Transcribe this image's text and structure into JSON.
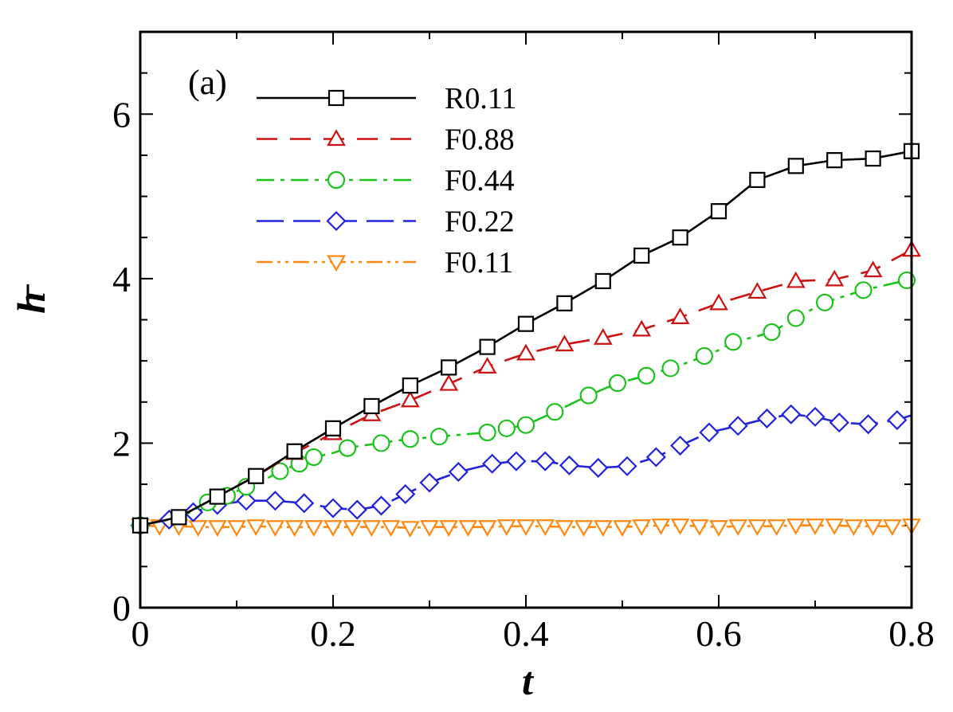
{
  "chart_data": {
    "type": "line",
    "panel_label": "(a)",
    "xlabel": "t",
    "ylabel": "h",
    "ylabel_overbar": true,
    "xlim": [
      0,
      0.8
    ],
    "ylim": [
      0,
      7
    ],
    "xticks": [
      0,
      0.2,
      0.4,
      0.6,
      0.8
    ],
    "xtick_labels": [
      "0",
      "0.2",
      "0.4",
      "0.6",
      "0.8"
    ],
    "yticks": [
      0,
      2,
      4,
      6
    ],
    "ytick_labels": [
      "0",
      "2",
      "4",
      "6"
    ],
    "legend_position": "top-left",
    "grid": false,
    "series": [
      {
        "name": "R0.11",
        "color": "#000000",
        "marker": "square",
        "dash": "solid",
        "line": [
          [
            0,
            1.0
          ],
          [
            0.04,
            1.1
          ],
          [
            0.08,
            1.35
          ],
          [
            0.12,
            1.6
          ],
          [
            0.16,
            1.9
          ],
          [
            0.2,
            2.18
          ],
          [
            0.24,
            2.45
          ],
          [
            0.28,
            2.7
          ],
          [
            0.32,
            2.92
          ],
          [
            0.36,
            3.17
          ],
          [
            0.4,
            3.45
          ],
          [
            0.44,
            3.7
          ],
          [
            0.48,
            3.97
          ],
          [
            0.52,
            4.28
          ],
          [
            0.56,
            4.5
          ],
          [
            0.6,
            4.82
          ],
          [
            0.64,
            5.2
          ],
          [
            0.68,
            5.37
          ],
          [
            0.72,
            5.44
          ],
          [
            0.76,
            5.46
          ],
          [
            0.8,
            5.55
          ]
        ],
        "markers": [
          [
            0,
            1.0
          ],
          [
            0.04,
            1.1
          ],
          [
            0.08,
            1.35
          ],
          [
            0.12,
            1.6
          ],
          [
            0.16,
            1.9
          ],
          [
            0.2,
            2.18
          ],
          [
            0.24,
            2.45
          ],
          [
            0.28,
            2.7
          ],
          [
            0.32,
            2.92
          ],
          [
            0.36,
            3.17
          ],
          [
            0.4,
            3.45
          ],
          [
            0.44,
            3.7
          ],
          [
            0.48,
            3.97
          ],
          [
            0.52,
            4.28
          ],
          [
            0.56,
            4.5
          ],
          [
            0.6,
            4.82
          ],
          [
            0.64,
            5.2
          ],
          [
            0.68,
            5.37
          ],
          [
            0.72,
            5.44
          ],
          [
            0.76,
            5.46
          ],
          [
            0.8,
            5.55
          ]
        ]
      },
      {
        "name": "F0.88",
        "color": "#cc1111",
        "marker": "triangle-up",
        "dash": "dashed",
        "line": [
          [
            0,
            1.0
          ],
          [
            0.04,
            1.1
          ],
          [
            0.08,
            1.35
          ],
          [
            0.12,
            1.6
          ],
          [
            0.16,
            1.88
          ],
          [
            0.2,
            2.12
          ],
          [
            0.24,
            2.35
          ],
          [
            0.28,
            2.52
          ],
          [
            0.32,
            2.72
          ],
          [
            0.36,
            2.93
          ],
          [
            0.4,
            3.09
          ],
          [
            0.44,
            3.2
          ],
          [
            0.48,
            3.28
          ],
          [
            0.52,
            3.38
          ],
          [
            0.56,
            3.53
          ],
          [
            0.6,
            3.7
          ],
          [
            0.64,
            3.84
          ],
          [
            0.68,
            3.97
          ],
          [
            0.72,
            3.99
          ],
          [
            0.76,
            4.1
          ],
          [
            0.8,
            4.35
          ]
        ],
        "markers": [
          [
            0.16,
            1.88
          ],
          [
            0.2,
            2.12
          ],
          [
            0.24,
            2.35
          ],
          [
            0.28,
            2.52
          ],
          [
            0.32,
            2.72
          ],
          [
            0.36,
            2.93
          ],
          [
            0.4,
            3.09
          ],
          [
            0.44,
            3.2
          ],
          [
            0.48,
            3.28
          ],
          [
            0.52,
            3.38
          ],
          [
            0.56,
            3.53
          ],
          [
            0.6,
            3.7
          ],
          [
            0.64,
            3.84
          ],
          [
            0.68,
            3.97
          ],
          [
            0.72,
            3.99
          ],
          [
            0.76,
            4.1
          ],
          [
            0.8,
            4.35
          ]
        ]
      },
      {
        "name": "F0.44",
        "color": "#1cc21c",
        "marker": "circle",
        "dash": "dashdot",
        "line": [
          [
            0,
            1.0
          ],
          [
            0.03,
            1.07
          ],
          [
            0.05,
            1.15
          ],
          [
            0.07,
            1.28
          ],
          [
            0.09,
            1.36
          ],
          [
            0.11,
            1.47
          ],
          [
            0.13,
            1.56
          ],
          [
            0.145,
            1.66
          ],
          [
            0.165,
            1.75
          ],
          [
            0.18,
            1.83
          ],
          [
            0.2,
            1.88
          ],
          [
            0.215,
            1.94
          ],
          [
            0.23,
            1.97
          ],
          [
            0.25,
            2.0
          ],
          [
            0.265,
            2.03
          ],
          [
            0.28,
            2.05
          ],
          [
            0.31,
            2.08
          ],
          [
            0.33,
            2.1
          ],
          [
            0.36,
            2.13
          ],
          [
            0.38,
            2.18
          ],
          [
            0.4,
            2.22
          ],
          [
            0.43,
            2.38
          ],
          [
            0.465,
            2.58
          ],
          [
            0.495,
            2.73
          ],
          [
            0.525,
            2.82
          ],
          [
            0.55,
            2.91
          ],
          [
            0.57,
            2.99
          ],
          [
            0.585,
            3.06
          ],
          [
            0.6,
            3.13
          ],
          [
            0.615,
            3.23
          ],
          [
            0.64,
            3.3
          ],
          [
            0.655,
            3.35
          ],
          [
            0.68,
            3.52
          ],
          [
            0.71,
            3.71
          ],
          [
            0.75,
            3.86
          ],
          [
            0.795,
            3.98
          ]
        ],
        "markers": [
          [
            0,
            1.0
          ],
          [
            0.07,
            1.28
          ],
          [
            0.09,
            1.36
          ],
          [
            0.11,
            1.47
          ],
          [
            0.145,
            1.66
          ],
          [
            0.165,
            1.75
          ],
          [
            0.18,
            1.83
          ],
          [
            0.215,
            1.94
          ],
          [
            0.25,
            2.0
          ],
          [
            0.28,
            2.05
          ],
          [
            0.31,
            2.08
          ],
          [
            0.36,
            2.13
          ],
          [
            0.38,
            2.18
          ],
          [
            0.4,
            2.22
          ],
          [
            0.43,
            2.38
          ],
          [
            0.465,
            2.58
          ],
          [
            0.495,
            2.73
          ],
          [
            0.525,
            2.82
          ],
          [
            0.55,
            2.91
          ],
          [
            0.585,
            3.06
          ],
          [
            0.615,
            3.23
          ],
          [
            0.655,
            3.35
          ],
          [
            0.68,
            3.52
          ],
          [
            0.71,
            3.71
          ],
          [
            0.75,
            3.86
          ],
          [
            0.795,
            3.98
          ]
        ]
      },
      {
        "name": "F0.22",
        "color": "#2323dd",
        "marker": "diamond",
        "dash": "longdash",
        "line": [
          [
            0,
            1.0
          ],
          [
            0.03,
            1.07
          ],
          [
            0.055,
            1.16
          ],
          [
            0.08,
            1.25
          ],
          [
            0.11,
            1.3
          ],
          [
            0.14,
            1.3
          ],
          [
            0.17,
            1.27
          ],
          [
            0.2,
            1.21
          ],
          [
            0.225,
            1.19
          ],
          [
            0.25,
            1.24
          ],
          [
            0.275,
            1.38
          ],
          [
            0.3,
            1.52
          ],
          [
            0.33,
            1.65
          ],
          [
            0.365,
            1.75
          ],
          [
            0.39,
            1.78
          ],
          [
            0.42,
            1.78
          ],
          [
            0.445,
            1.73
          ],
          [
            0.475,
            1.7
          ],
          [
            0.505,
            1.72
          ],
          [
            0.535,
            1.83
          ],
          [
            0.56,
            1.97
          ],
          [
            0.59,
            2.13
          ],
          [
            0.62,
            2.21
          ],
          [
            0.65,
            2.3
          ],
          [
            0.675,
            2.35
          ],
          [
            0.7,
            2.32
          ],
          [
            0.725,
            2.25
          ],
          [
            0.755,
            2.23
          ],
          [
            0.785,
            2.28
          ],
          [
            0.8,
            2.34
          ]
        ],
        "markers": [
          [
            0,
            1.0
          ],
          [
            0.03,
            1.07
          ],
          [
            0.055,
            1.16
          ],
          [
            0.08,
            1.25
          ],
          [
            0.11,
            1.3
          ],
          [
            0.14,
            1.3
          ],
          [
            0.17,
            1.27
          ],
          [
            0.2,
            1.21
          ],
          [
            0.225,
            1.19
          ],
          [
            0.25,
            1.24
          ],
          [
            0.275,
            1.38
          ],
          [
            0.3,
            1.52
          ],
          [
            0.33,
            1.65
          ],
          [
            0.365,
            1.75
          ],
          [
            0.39,
            1.78
          ],
          [
            0.42,
            1.78
          ],
          [
            0.445,
            1.73
          ],
          [
            0.475,
            1.7
          ],
          [
            0.505,
            1.72
          ],
          [
            0.535,
            1.83
          ],
          [
            0.56,
            1.97
          ],
          [
            0.59,
            2.13
          ],
          [
            0.62,
            2.21
          ],
          [
            0.65,
            2.3
          ],
          [
            0.675,
            2.35
          ],
          [
            0.7,
            2.32
          ],
          [
            0.725,
            2.25
          ],
          [
            0.755,
            2.23
          ],
          [
            0.785,
            2.28
          ]
        ]
      },
      {
        "name": "F0.11",
        "color": "#ff8811",
        "marker": "triangle-down",
        "dash": "dashdotdot",
        "line": [
          [
            0,
            1.0
          ],
          [
            0.02,
            0.99
          ],
          [
            0.04,
            0.99
          ],
          [
            0.06,
            0.98
          ],
          [
            0.08,
            0.98
          ],
          [
            0.1,
            0.98
          ],
          [
            0.12,
            0.99
          ],
          [
            0.14,
            0.98
          ],
          [
            0.16,
            0.98
          ],
          [
            0.18,
            0.98
          ],
          [
            0.2,
            0.98
          ],
          [
            0.22,
            0.98
          ],
          [
            0.24,
            0.98
          ],
          [
            0.26,
            0.98
          ],
          [
            0.28,
            0.97
          ],
          [
            0.3,
            0.98
          ],
          [
            0.32,
            0.98
          ],
          [
            0.34,
            0.98
          ],
          [
            0.36,
            0.98
          ],
          [
            0.38,
            0.99
          ],
          [
            0.4,
            0.99
          ],
          [
            0.42,
            0.99
          ],
          [
            0.44,
            0.98
          ],
          [
            0.46,
            0.98
          ],
          [
            0.48,
            0.98
          ],
          [
            0.5,
            0.98
          ],
          [
            0.52,
            0.99
          ],
          [
            0.54,
            1.0
          ],
          [
            0.56,
            1.0
          ],
          [
            0.58,
            0.99
          ],
          [
            0.6,
            0.98
          ],
          [
            0.62,
            0.99
          ],
          [
            0.64,
            0.99
          ],
          [
            0.66,
            0.99
          ],
          [
            0.68,
            1.0
          ],
          [
            0.7,
            1.0
          ],
          [
            0.72,
            1.0
          ],
          [
            0.74,
            0.99
          ],
          [
            0.76,
            0.99
          ],
          [
            0.78,
            0.99
          ],
          [
            0.8,
            1.0
          ]
        ],
        "markers": [
          [
            0,
            1.0
          ],
          [
            0.02,
            0.99
          ],
          [
            0.04,
            0.99
          ],
          [
            0.06,
            0.98
          ],
          [
            0.08,
            0.98
          ],
          [
            0.1,
            0.98
          ],
          [
            0.12,
            0.99
          ],
          [
            0.14,
            0.98
          ],
          [
            0.16,
            0.98
          ],
          [
            0.18,
            0.98
          ],
          [
            0.2,
            0.98
          ],
          [
            0.22,
            0.98
          ],
          [
            0.24,
            0.98
          ],
          [
            0.26,
            0.98
          ],
          [
            0.28,
            0.97
          ],
          [
            0.3,
            0.98
          ],
          [
            0.32,
            0.98
          ],
          [
            0.34,
            0.98
          ],
          [
            0.36,
            0.98
          ],
          [
            0.38,
            0.99
          ],
          [
            0.4,
            0.99
          ],
          [
            0.42,
            0.99
          ],
          [
            0.44,
            0.98
          ],
          [
            0.46,
            0.98
          ],
          [
            0.48,
            0.98
          ],
          [
            0.5,
            0.98
          ],
          [
            0.52,
            0.99
          ],
          [
            0.54,
            1.0
          ],
          [
            0.56,
            1.0
          ],
          [
            0.58,
            0.99
          ],
          [
            0.6,
            0.98
          ],
          [
            0.62,
            0.99
          ],
          [
            0.64,
            0.99
          ],
          [
            0.66,
            0.99
          ],
          [
            0.68,
            1.0
          ],
          [
            0.7,
            1.0
          ],
          [
            0.72,
            1.0
          ],
          [
            0.74,
            0.99
          ],
          [
            0.76,
            0.99
          ],
          [
            0.78,
            0.99
          ],
          [
            0.8,
            1.0
          ]
        ]
      }
    ]
  }
}
